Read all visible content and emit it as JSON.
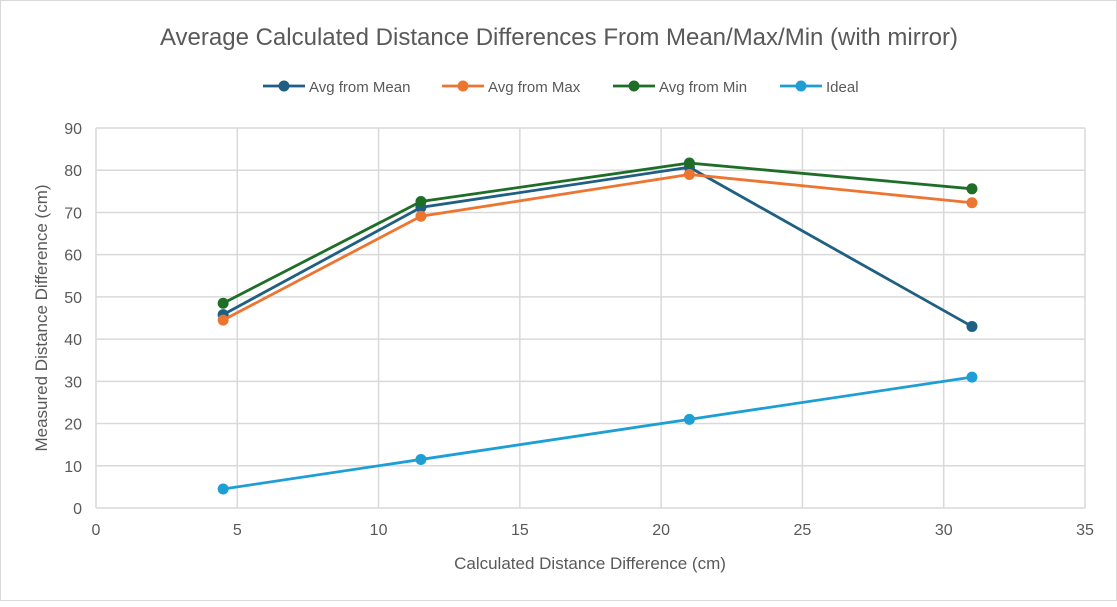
{
  "chart_data": {
    "type": "line",
    "title": "Average Calculated Distance Differences From Mean/Max/Min (with mirror)",
    "xlabel": "Calculated Distance Difference (cm)",
    "ylabel": "Measured Distance Difference (cm)",
    "xlim": [
      0,
      35
    ],
    "ylim": [
      0,
      90
    ],
    "xticks": [
      0,
      5,
      10,
      15,
      20,
      25,
      30,
      35
    ],
    "yticks": [
      0,
      10,
      20,
      30,
      40,
      50,
      60,
      70,
      80,
      90
    ],
    "grid": true,
    "legend_position": "top",
    "x": [
      4.5,
      11.5,
      21,
      31
    ],
    "series": [
      {
        "name": "Avg from Mean",
        "color": "#1f5f82",
        "values": [
          45.8,
          71.2,
          80.7,
          43.0
        ]
      },
      {
        "name": "Avg from Max",
        "color": "#ed7532",
        "values": [
          44.5,
          69.1,
          79.0,
          72.3
        ]
      },
      {
        "name": "Avg from Min",
        "color": "#1e6e28",
        "values": [
          48.5,
          72.6,
          81.7,
          75.6
        ]
      },
      {
        "name": "Ideal",
        "color": "#1d9fd6",
        "values": [
          4.5,
          11.5,
          21,
          31
        ]
      }
    ]
  }
}
